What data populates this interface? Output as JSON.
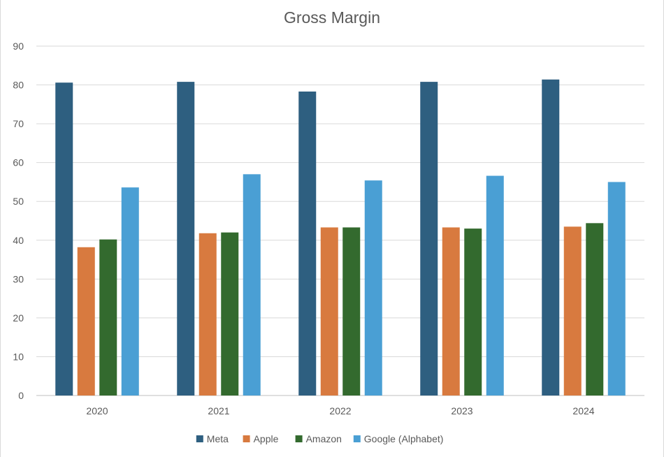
{
  "chart_data": {
    "type": "bar",
    "title": "Gross Margin",
    "xlabel": "",
    "ylabel": "",
    "categories": [
      "2020",
      "2021",
      "2022",
      "2023",
      "2024"
    ],
    "ylim": [
      0,
      90
    ],
    "yticks": [
      0,
      10,
      20,
      30,
      40,
      50,
      60,
      70,
      80,
      90
    ],
    "grid": true,
    "legend_position": "bottom",
    "series": [
      {
        "name": "Meta",
        "color": "#2e5f80",
        "values": [
          80.6,
          80.8,
          78.3,
          80.8,
          81.4
        ]
      },
      {
        "name": "Apple",
        "color": "#d87a3f",
        "values": [
          38.2,
          41.8,
          43.3,
          43.3,
          43.5
        ]
      },
      {
        "name": "Amazon",
        "color": "#336a2e",
        "values": [
          40.2,
          42.0,
          43.3,
          43.0,
          44.4
        ]
      },
      {
        "name": "Google (Alphabet)",
        "color": "#4a9fd4",
        "values": [
          53.6,
          57.0,
          55.4,
          56.6,
          55.0
        ]
      }
    ]
  }
}
